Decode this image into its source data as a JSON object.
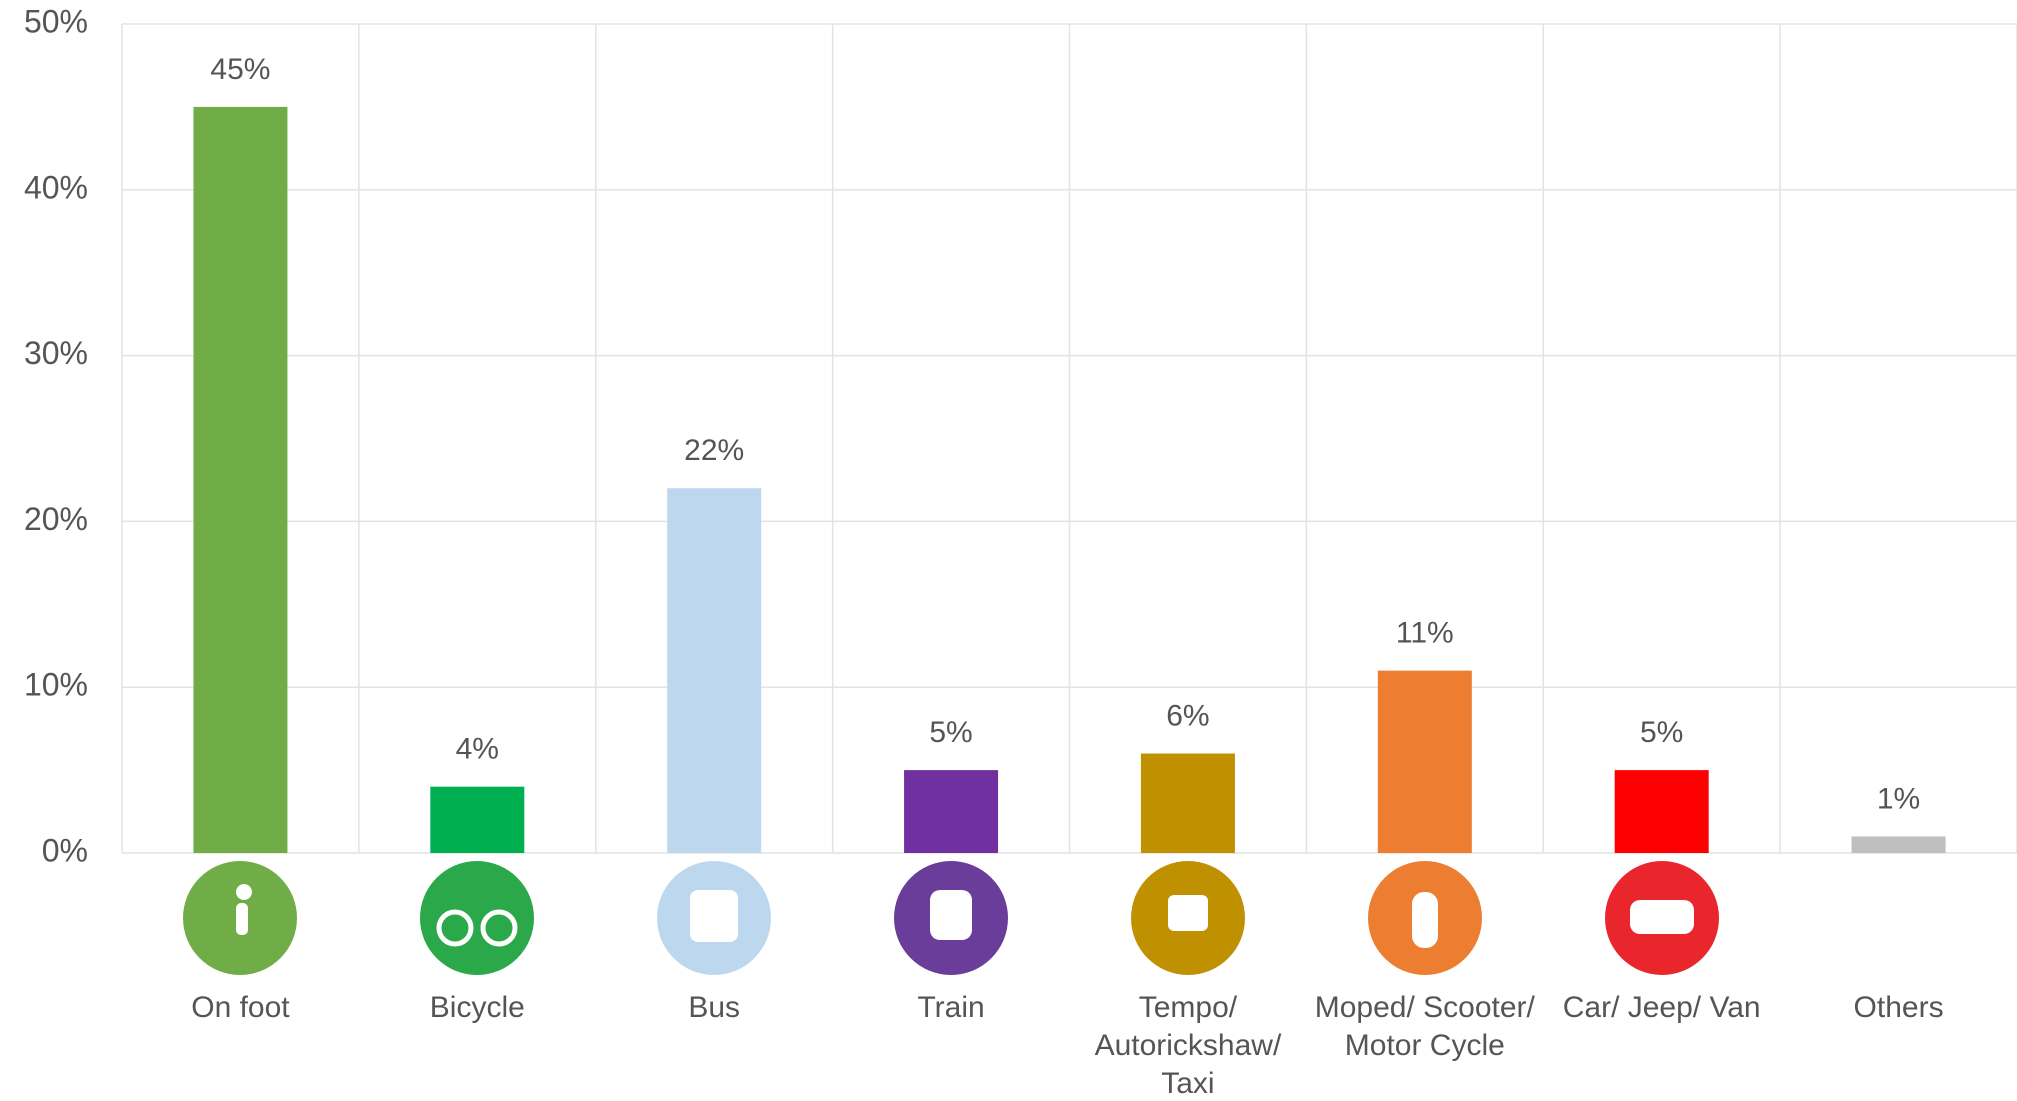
{
  "chart_data": {
    "type": "bar",
    "categories": [
      "On foot",
      "Bicycle",
      "Bus",
      "Train",
      "Tempo/ Autorickshaw/ Taxi",
      "Moped/ Scooter/ Motor Cycle",
      "Car/ Jeep/ Van",
      "Others"
    ],
    "values": [
      45,
      4,
      22,
      5,
      6,
      11,
      5,
      1
    ],
    "value_labels": [
      "45%",
      "4%",
      "22%",
      "5%",
      "6%",
      "11%",
      "5%",
      "1%"
    ],
    "colors": [
      "#70ad47",
      "#00b050",
      "#bdd7ee",
      "#7030a0",
      "#bf9000",
      "#ed7d31",
      "#ff0000",
      "#bfbfbf"
    ],
    "ylim": [
      0,
      50
    ],
    "yticks": [
      {
        "value": 0,
        "label": "0%"
      },
      {
        "value": 10,
        "label": "10%"
      },
      {
        "value": 20,
        "label": "20%"
      },
      {
        "value": 30,
        "label": "30%"
      },
      {
        "value": 40,
        "label": "40%"
      },
      {
        "value": 50,
        "label": "50%"
      }
    ],
    "grid": true
  }
}
